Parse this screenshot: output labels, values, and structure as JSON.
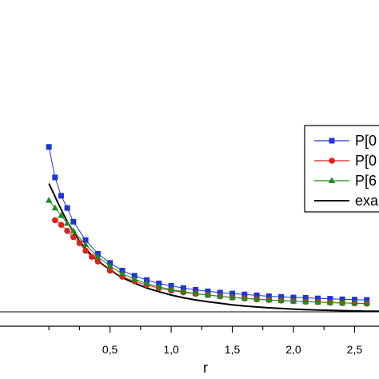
{
  "chart_data": {
    "type": "line",
    "xlabel": "r",
    "xlim": [
      -0.4,
      2.7
    ],
    "ylim": [
      -0.02,
      1.0
    ],
    "x_ticks": [
      0.5,
      1.0,
      1.5,
      2.0,
      2.5
    ],
    "x_tick_labels": [
      "0,5",
      "1,0",
      "1,5",
      "2,0",
      "2,5"
    ],
    "legend_position": "right",
    "series": [
      {
        "name": "P[0",
        "color": "#1f35d6",
        "marker": "square",
        "x": [
          0.0,
          0.05,
          0.1,
          0.15,
          0.2,
          0.3,
          0.4,
          0.5,
          0.6,
          0.7,
          0.8,
          0.9,
          1.0,
          1.1,
          1.2,
          1.3,
          1.4,
          1.5,
          1.6,
          1.7,
          1.8,
          1.9,
          2.0,
          2.1,
          2.2,
          2.3,
          2.4,
          2.5,
          2.6
        ],
        "y": [
          0.54,
          0.44,
          0.38,
          0.34,
          0.295,
          0.235,
          0.19,
          0.16,
          0.135,
          0.118,
          0.104,
          0.093,
          0.085,
          0.078,
          0.072,
          0.067,
          0.063,
          0.06,
          0.057,
          0.054,
          0.051,
          0.049,
          0.047,
          0.046,
          0.044,
          0.043,
          0.041,
          0.04,
          0.039
        ]
      },
      {
        "name": "P[0",
        "color": "#e0201a",
        "marker": "circle",
        "x": [
          0.05,
          0.1,
          0.15,
          0.2,
          0.25,
          0.3,
          0.35,
          0.4,
          0.5,
          0.6,
          0.7,
          0.8,
          0.9,
          1.0,
          1.1,
          1.2,
          1.3,
          1.4,
          1.5,
          1.6,
          1.7,
          1.8,
          1.9,
          2.0,
          2.1,
          2.2,
          2.3,
          2.4,
          2.5,
          2.6
        ],
        "y": [
          0.3,
          0.285,
          0.265,
          0.245,
          0.225,
          0.2,
          0.18,
          0.165,
          0.135,
          0.115,
          0.1,
          0.088,
          0.078,
          0.07,
          0.064,
          0.059,
          0.055,
          0.051,
          0.047,
          0.044,
          0.041,
          0.039,
          0.037,
          0.035,
          0.033,
          0.032,
          0.03,
          0.029,
          0.028,
          0.027
        ]
      },
      {
        "name": "P[6",
        "color": "#1f8a1f",
        "marker": "triangle",
        "x": [
          0.0,
          0.05,
          0.1,
          0.15,
          0.2,
          0.3,
          0.4,
          0.5,
          0.6,
          0.7,
          0.8,
          0.9,
          1.0,
          1.1,
          1.2,
          1.3,
          1.4,
          1.5,
          1.6,
          1.7,
          1.8,
          1.9,
          2.0,
          2.1,
          2.2,
          2.3,
          2.4,
          2.5,
          2.6
        ],
        "y": [
          0.365,
          0.34,
          0.315,
          0.29,
          0.265,
          0.22,
          0.18,
          0.15,
          0.125,
          0.107,
          0.093,
          0.082,
          0.073,
          0.066,
          0.06,
          0.055,
          0.051,
          0.047,
          0.044,
          0.041,
          0.039,
          0.037,
          0.035,
          0.033,
          0.032,
          0.03,
          0.029,
          0.028,
          0.027
        ]
      },
      {
        "name": "exa",
        "color": "#000000",
        "marker": "none",
        "x": [
          0.0,
          0.03,
          0.07,
          0.1,
          0.15,
          0.2,
          0.25,
          0.3,
          0.35,
          0.4,
          0.5,
          0.6,
          0.7,
          0.8,
          0.9,
          1.0,
          1.1,
          1.2,
          1.3,
          1.4,
          1.5,
          1.6,
          1.7,
          1.8,
          1.9,
          2.0,
          2.1,
          2.2,
          2.3,
          2.4,
          2.5,
          2.6,
          2.7
        ],
        "y": [
          0.42,
          0.395,
          0.36,
          0.335,
          0.295,
          0.262,
          0.232,
          0.207,
          0.185,
          0.167,
          0.137,
          0.112,
          0.094,
          0.078,
          0.066,
          0.055,
          0.046,
          0.039,
          0.033,
          0.028,
          0.023,
          0.019,
          0.016,
          0.013,
          0.011,
          0.009,
          0.007,
          0.006,
          0.005,
          0.004,
          0.003,
          0.002,
          0.002
        ]
      }
    ]
  }
}
